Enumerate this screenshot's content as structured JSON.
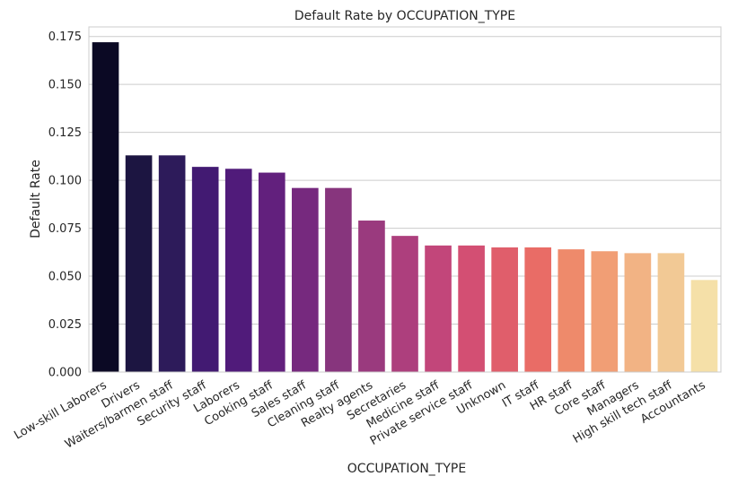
{
  "chart_data": {
    "type": "bar",
    "title": "Default Rate by OCCUPATION_TYPE",
    "xlabel": "OCCUPATION_TYPE",
    "ylabel": "Default Rate",
    "ylim": [
      0,
      0.18
    ],
    "yticks": [
      "0.000",
      "0.025",
      "0.050",
      "0.075",
      "0.100",
      "0.125",
      "0.150",
      "0.175"
    ],
    "grid": true,
    "palette": "magma",
    "categories": [
      "Low-skill Laborers",
      "Drivers",
      "Waiters/barmen staff",
      "Security staff",
      "Laborers",
      "Cooking staff",
      "Sales staff",
      "Cleaning staff",
      "Realty agents",
      "Secretaries",
      "Medicine staff",
      "Private service staff",
      "Unknown",
      "IT staff",
      "HR staff",
      "Core staff",
      "Managers",
      "High skill tech staff",
      "Accountants"
    ],
    "values": [
      0.172,
      0.113,
      0.113,
      0.107,
      0.106,
      0.104,
      0.096,
      0.096,
      0.079,
      0.071,
      0.066,
      0.066,
      0.065,
      0.065,
      0.064,
      0.063,
      0.062,
      0.062,
      0.048
    ],
    "colors": [
      "#0b0924",
      "#1c1541",
      "#2d1b5a",
      "#421a72",
      "#501b7a",
      "#62207d",
      "#76297e",
      "#87357d",
      "#9a3a7e",
      "#ad3f7d",
      "#c2467a",
      "#d34f73",
      "#e05e6b",
      "#e96c66",
      "#ee8a6b",
      "#f19e75",
      "#f2b384",
      "#f2c995",
      "#f5e0a8"
    ]
  }
}
